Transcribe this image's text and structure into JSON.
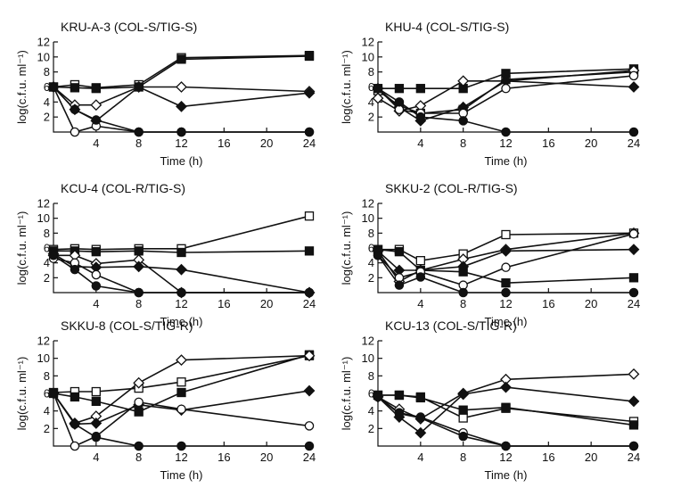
{
  "chart_data": [
    {
      "type": "line",
      "title": "KRU-A-3 (COL-S/TIG-S)",
      "xlabel": "Time (h)",
      "ylabel": "log(c.f.u. ml⁻¹)",
      "x_ticks": [
        "4",
        "8",
        "12",
        "16",
        "20",
        "24"
      ],
      "y_ticks": [
        "2",
        "4",
        "6",
        "8",
        "10",
        "12"
      ],
      "xlim": [
        0,
        24
      ],
      "ylim": [
        0,
        12
      ],
      "series": [
        {
          "marker": "square-open",
          "x": [
            0,
            2,
            4,
            8,
            12,
            24
          ],
          "y": [
            6.0,
            6.3,
            5.9,
            6.3,
            9.9,
            10.2
          ]
        },
        {
          "marker": "square-filled",
          "x": [
            0,
            2,
            4,
            8,
            12,
            24
          ],
          "y": [
            6.0,
            5.9,
            5.8,
            6.0,
            9.7,
            10.1
          ]
        },
        {
          "marker": "diamond-open",
          "x": [
            0,
            2,
            4,
            8,
            12,
            24
          ],
          "y": [
            6.0,
            3.6,
            3.6,
            6.0,
            6.0,
            5.4
          ]
        },
        {
          "marker": "diamond-filled",
          "x": [
            0,
            2,
            4,
            8,
            12,
            24
          ],
          "y": [
            6.0,
            3.0,
            1.5,
            6.0,
            3.4,
            5.2
          ]
        },
        {
          "marker": "circle-open",
          "x": [
            0,
            2,
            4,
            8,
            12,
            24
          ],
          "y": [
            6.0,
            0.0,
            0.8,
            0.0,
            0.0,
            0.0
          ]
        },
        {
          "marker": "circle-filled",
          "x": [
            0,
            2,
            4,
            8,
            12,
            24
          ],
          "y": [
            6.0,
            3.0,
            1.6,
            0.0,
            0.0,
            0.0
          ]
        }
      ]
    },
    {
      "type": "line",
      "title": "KHU-4 (COL-S/TIG-S)",
      "xlabel": "Time (h)",
      "ylabel": "log(c.f.u. ml⁻¹)",
      "x_ticks": [
        "4",
        "8",
        "12",
        "16",
        "20",
        "24"
      ],
      "y_ticks": [
        "2",
        "4",
        "6",
        "8",
        "10",
        "12"
      ],
      "xlim": [
        0,
        24
      ],
      "ylim": [
        0,
        12
      ],
      "series": [
        {
          "marker": "square-open",
          "x": [
            0,
            2,
            4,
            8,
            12,
            24
          ],
          "y": [
            5.5,
            3.5,
            2.5,
            3.0,
            7.0,
            8.0
          ]
        },
        {
          "marker": "square-filled",
          "x": [
            0,
            2,
            4,
            8,
            12,
            24
          ],
          "y": [
            5.8,
            5.8,
            5.8,
            5.8,
            7.8,
            8.4
          ]
        },
        {
          "marker": "diamond-open",
          "x": [
            0,
            2,
            4,
            8,
            12,
            24
          ],
          "y": [
            4.5,
            2.8,
            3.5,
            6.8,
            6.8,
            8.2
          ]
        },
        {
          "marker": "diamond-filled",
          "x": [
            0,
            2,
            4,
            8,
            12,
            24
          ],
          "y": [
            5.8,
            3.3,
            1.5,
            3.3,
            6.8,
            6.0
          ]
        },
        {
          "marker": "circle-open",
          "x": [
            0,
            2,
            4,
            8,
            12,
            24
          ],
          "y": [
            5.8,
            3.0,
            2.5,
            2.5,
            5.8,
            7.5
          ]
        },
        {
          "marker": "circle-filled",
          "x": [
            0,
            2,
            4,
            8,
            12,
            24
          ],
          "y": [
            5.8,
            4.0,
            2.0,
            1.5,
            0.0,
            0.0
          ]
        }
      ]
    },
    {
      "type": "line",
      "title": "KCU-4 (COL-R/TIG-S)",
      "xlabel": "Time (h)",
      "ylabel": "log(c.f.u. ml⁻¹)",
      "x_ticks": [
        "4",
        "8",
        "12",
        "16",
        "20",
        "24"
      ],
      "y_ticks": [
        "2",
        "4",
        "6",
        "8",
        "10",
        "12"
      ],
      "xlim": [
        0,
        24
      ],
      "ylim": [
        0,
        12
      ],
      "series": [
        {
          "marker": "square-open",
          "x": [
            0,
            2,
            4,
            8,
            12,
            24
          ],
          "y": [
            5.8,
            5.9,
            5.8,
            5.9,
            5.9,
            10.3
          ]
        },
        {
          "marker": "square-filled",
          "x": [
            0,
            2,
            4,
            8,
            12,
            24
          ],
          "y": [
            5.6,
            5.6,
            5.5,
            5.6,
            5.4,
            5.6
          ]
        },
        {
          "marker": "diamond-open",
          "x": [
            0,
            2,
            4,
            8,
            12,
            24
          ],
          "y": [
            5.0,
            5.0,
            3.9,
            4.4,
            0.0,
            0.0
          ]
        },
        {
          "marker": "diamond-filled",
          "x": [
            0,
            2,
            4,
            8,
            12,
            24
          ],
          "y": [
            5.2,
            3.5,
            3.4,
            3.5,
            3.1,
            0.0
          ]
        },
        {
          "marker": "circle-open",
          "x": [
            0,
            2,
            4,
            8,
            12,
            24
          ],
          "y": [
            4.6,
            4.0,
            2.4,
            0.0,
            0.0,
            0.0
          ]
        },
        {
          "marker": "circle-filled",
          "x": [
            0,
            2,
            4,
            8,
            12,
            24
          ],
          "y": [
            5.0,
            3.1,
            0.9,
            0.0,
            0.0,
            0.0
          ]
        }
      ]
    },
    {
      "type": "line",
      "title": "SKKU-2 (COL-R/TIG-S)",
      "xlabel": "Time (h)",
      "ylabel": "log(c.f.u. ml⁻¹)",
      "x_ticks": [
        "4",
        "8",
        "12",
        "16",
        "20",
        "24"
      ],
      "y_ticks": [
        "2",
        "4",
        "6",
        "8",
        "10",
        "12"
      ],
      "xlim": [
        0,
        24
      ],
      "ylim": [
        0,
        12
      ],
      "series": [
        {
          "marker": "square-open",
          "x": [
            0,
            2,
            4,
            8,
            12,
            24
          ],
          "y": [
            5.8,
            5.8,
            4.3,
            5.2,
            7.8,
            8.0
          ]
        },
        {
          "marker": "square-filled",
          "x": [
            0,
            2,
            4,
            8,
            12,
            24
          ],
          "y": [
            5.8,
            5.5,
            3.0,
            2.8,
            1.3,
            2.0
          ]
        },
        {
          "marker": "diamond-open",
          "x": [
            0,
            2,
            4,
            8,
            12,
            24
          ],
          "y": [
            5.6,
            1.5,
            3.0,
            4.5,
            5.8,
            8.0
          ]
        },
        {
          "marker": "diamond-filled",
          "x": [
            0,
            2,
            4,
            8,
            12,
            24
          ],
          "y": [
            5.6,
            3.0,
            3.0,
            3.5,
            5.6,
            5.8
          ]
        },
        {
          "marker": "circle-open",
          "x": [
            0,
            2,
            4,
            8,
            12,
            24
          ],
          "y": [
            5.0,
            2.0,
            2.8,
            1.0,
            3.4,
            7.9
          ]
        },
        {
          "marker": "circle-filled",
          "x": [
            0,
            2,
            4,
            8,
            12,
            24
          ],
          "y": [
            5.0,
            1.0,
            2.1,
            0.0,
            0.0,
            0.0
          ]
        }
      ]
    },
    {
      "type": "line",
      "title": "SKKU-8 (COL-S/TIG-R)",
      "xlabel": "Time (h)",
      "ylabel": "log(c.f.u. ml⁻¹)",
      "x_ticks": [
        "4",
        "8",
        "12",
        "16",
        "20",
        "24"
      ],
      "y_ticks": [
        "2",
        "4",
        "6",
        "8",
        "10",
        "12"
      ],
      "xlim": [
        0,
        24
      ],
      "ylim": [
        0,
        12
      ],
      "series": [
        {
          "marker": "square-open",
          "x": [
            0,
            2,
            4,
            8,
            12,
            24
          ],
          "y": [
            6.1,
            6.2,
            6.2,
            6.6,
            7.3,
            10.3
          ]
        },
        {
          "marker": "square-filled",
          "x": [
            0,
            2,
            4,
            8,
            12,
            24
          ],
          "y": [
            6.0,
            5.6,
            5.1,
            3.9,
            6.1,
            10.4
          ]
        },
        {
          "marker": "diamond-open",
          "x": [
            0,
            2,
            4,
            8,
            12,
            24
          ],
          "y": [
            6.0,
            2.6,
            3.4,
            7.2,
            9.8,
            10.3
          ]
        },
        {
          "marker": "diamond-filled",
          "x": [
            0,
            2,
            4,
            8,
            12,
            24
          ],
          "y": [
            6.0,
            2.5,
            2.6,
            4.7,
            4.1,
            6.3
          ]
        },
        {
          "marker": "circle-open",
          "x": [
            0,
            2,
            4,
            8,
            12,
            24
          ],
          "y": [
            6.0,
            0.0,
            1.1,
            5.0,
            4.2,
            2.3
          ]
        },
        {
          "marker": "circle-filled",
          "x": [
            0,
            2,
            4,
            8,
            12,
            24
          ],
          "y": [
            6.0,
            2.5,
            1.0,
            0.0,
            0.0,
            0.0
          ]
        }
      ]
    },
    {
      "type": "line",
      "title": "KCU-13 (COL-S/TIG-R)",
      "xlabel": "Time (h)",
      "ylabel": "log(c.f.u. ml⁻¹)",
      "x_ticks": [
        "4",
        "8",
        "12",
        "16",
        "20",
        "24"
      ],
      "y_ticks": [
        "2",
        "4",
        "6",
        "8",
        "10",
        "12"
      ],
      "xlim": [
        0,
        24
      ],
      "ylim": [
        0,
        12
      ],
      "series": [
        {
          "marker": "square-open",
          "x": [
            0,
            2,
            4,
            8,
            12,
            24
          ],
          "y": [
            5.8,
            5.8,
            5.6,
            3.2,
            4.3,
            2.8
          ]
        },
        {
          "marker": "square-filled",
          "x": [
            0,
            2,
            4,
            8,
            12,
            24
          ],
          "y": [
            5.8,
            5.8,
            5.5,
            4.1,
            4.4,
            2.4
          ]
        },
        {
          "marker": "diamond-open",
          "x": [
            0,
            2,
            4,
            8,
            12,
            24
          ],
          "y": [
            5.6,
            4.2,
            3.1,
            6.0,
            7.6,
            8.2
          ]
        },
        {
          "marker": "diamond-filled",
          "x": [
            0,
            2,
            4,
            8,
            12,
            24
          ],
          "y": [
            5.6,
            3.3,
            1.5,
            5.9,
            6.7,
            5.1
          ]
        },
        {
          "marker": "circle-open",
          "x": [
            0,
            2,
            4,
            8,
            12,
            24
          ],
          "y": [
            5.6,
            3.8,
            3.3,
            1.5,
            0.0,
            0.0
          ]
        },
        {
          "marker": "circle-filled",
          "x": [
            0,
            2,
            4,
            8,
            12,
            24
          ],
          "y": [
            5.6,
            3.7,
            3.2,
            1.1,
            0.0,
            0.0
          ]
        }
      ]
    }
  ]
}
